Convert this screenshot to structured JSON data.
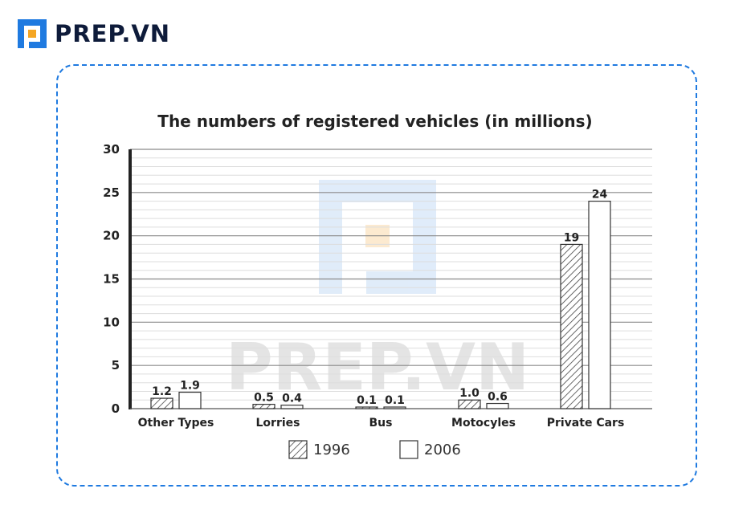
{
  "brand": {
    "name": "PREP.VN",
    "colors": {
      "primary": "#1f7ae0",
      "accent": "#f5a623"
    }
  },
  "watermark": {
    "text": "PREP.VN"
  },
  "chart_data": {
    "type": "bar",
    "title": "The numbers of registered vehicles (in millions)",
    "xlabel": "",
    "ylabel": "",
    "ylim": [
      0,
      30
    ],
    "yticks": [
      0,
      5,
      10,
      15,
      20,
      25,
      30
    ],
    "grid": true,
    "legend_position": "bottom",
    "categories": [
      "Other Types",
      "Lorries",
      "Bus",
      "Motocyles",
      "Private Cars"
    ],
    "series": [
      {
        "name": "1996",
        "fill": "hatched",
        "values": [
          1.2,
          0.5,
          0.1,
          1.0,
          19
        ],
        "labels": [
          "1.2",
          "0.5",
          "0.1",
          "1.0",
          "19"
        ]
      },
      {
        "name": "2006",
        "fill": "white",
        "values": [
          1.9,
          0.4,
          0.1,
          0.6,
          24
        ],
        "labels": [
          "1.9",
          "0.4",
          "0.1",
          "0.6",
          "24"
        ]
      }
    ]
  }
}
